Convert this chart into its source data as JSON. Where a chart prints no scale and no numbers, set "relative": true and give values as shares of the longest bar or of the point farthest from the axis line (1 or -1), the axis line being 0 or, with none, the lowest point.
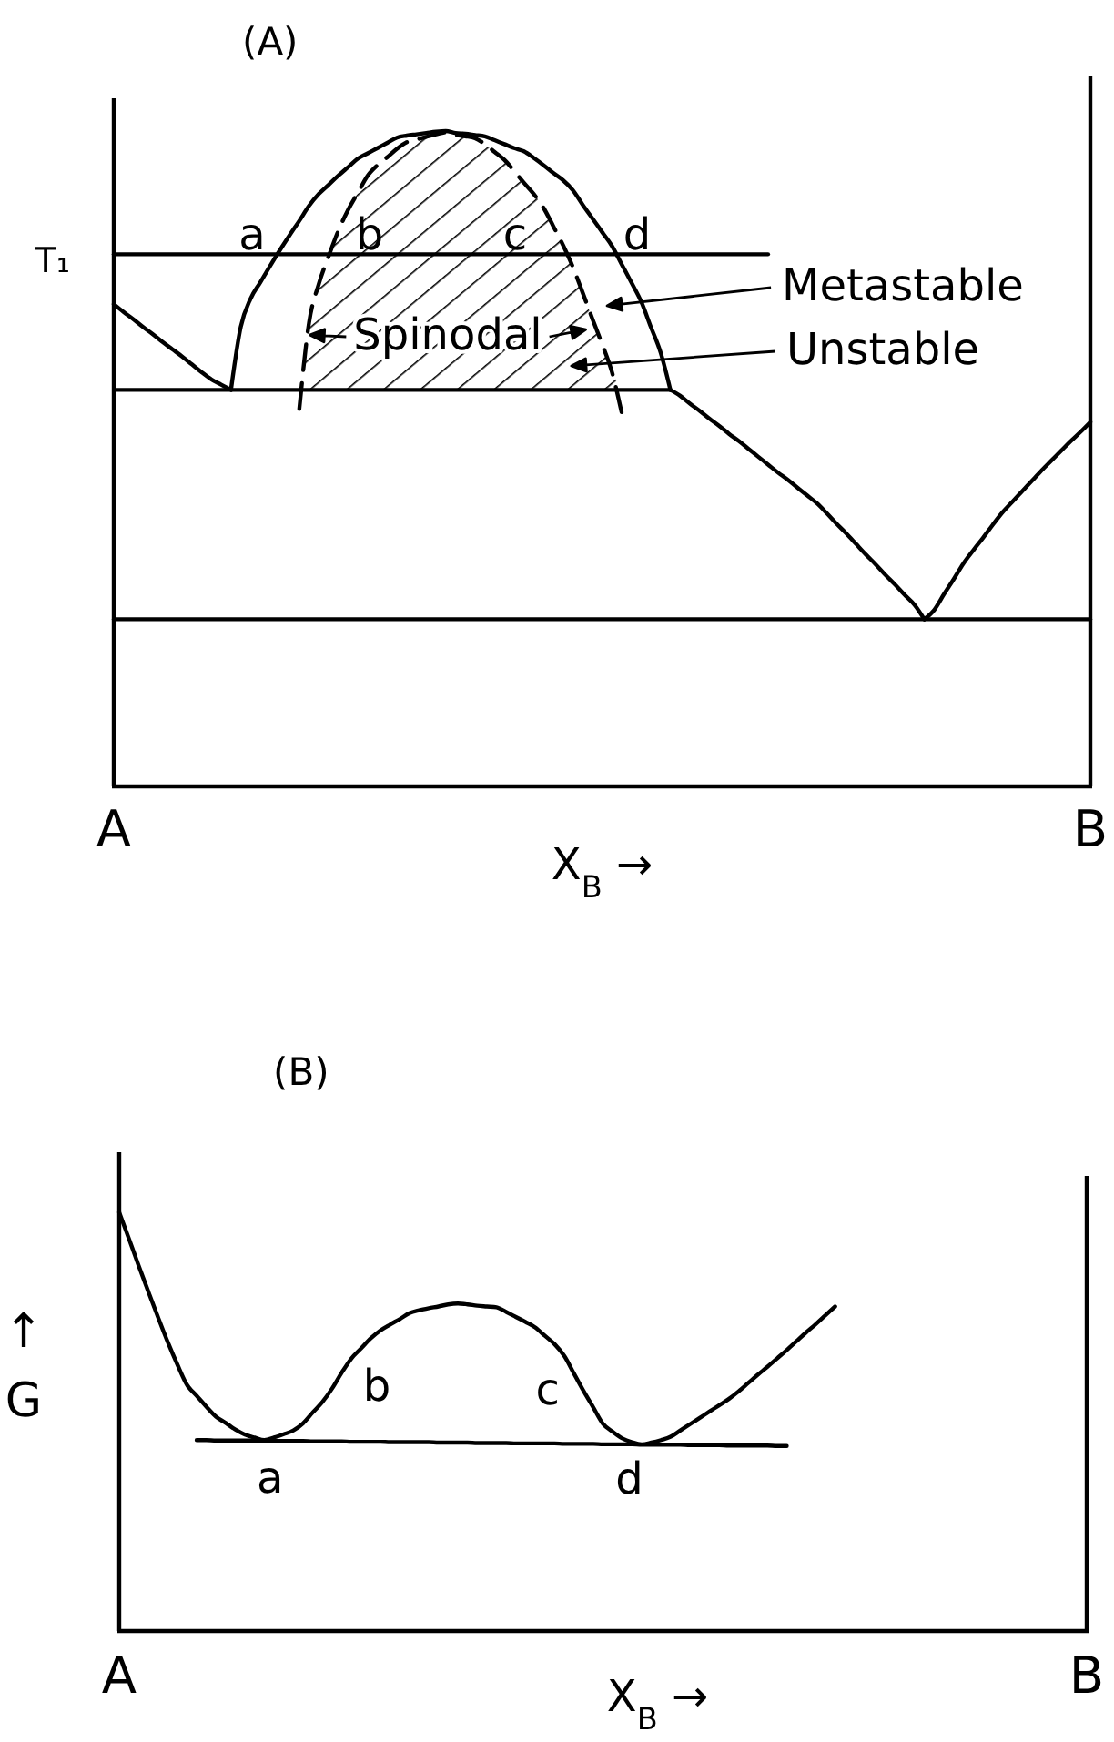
{
  "chart_data": [
    {
      "type": "line",
      "title": "(A)",
      "xlabel": "X$_{B}$ →",
      "relative": true,
      "categories": [
        "A",
        null,
        null,
        null,
        null,
        null,
        null,
        null,
        null,
        null,
        null,
        null,
        null,
        null,
        null,
        null,
        null,
        null,
        null,
        null,
        null,
        null,
        null,
        null,
        null,
        null,
        null,
        null,
        null,
        null,
        null,
        null,
        null,
        null,
        null,
        null,
        null,
        null,
        null,
        null,
        null,
        null,
        null,
        null,
        null,
        null,
        null,
        null,
        null,
        null,
        null,
        null,
        null,
        null,
        null,
        null,
        null,
        null,
        null,
        null,
        null,
        null,
        null,
        null,
        null,
        null,
        null,
        null,
        null,
        null,
        null,
        null,
        null,
        null,
        null,
        null,
        null,
        null,
        null,
        null,
        null,
        null,
        null,
        null,
        null,
        null,
        null,
        null,
        null,
        null,
        null,
        null,
        null,
        null,
        null,
        null,
        null,
        null,
        null,
        null,
        "B"
      ],
      "series": [
        {
          "color": "#000000",
          "values": [
            0.736,
            0.724,
            0.713,
            0.701,
            0.69,
            0.678,
            0.667,
            0.656,
            0.644,
            0.632,
            0.621,
            0.613,
            0.605,
            null,
            null,
            null,
            null,
            null,
            null,
            null,
            null,
            null,
            null,
            null,
            null,
            null,
            null,
            null,
            null,
            null,
            null,
            null,
            null,
            null,
            null,
            null,
            null,
            null,
            null,
            null,
            null,
            null,
            null,
            null,
            null,
            null,
            null,
            null,
            null,
            null,
            null,
            null,
            null,
            null,
            null,
            null,
            null,
            null,
            null,
            null,
            null,
            null,
            null,
            null,
            null,
            null,
            null,
            null,
            null,
            null,
            null,
            null,
            null,
            null,
            null,
            null,
            null,
            null,
            null,
            null,
            null,
            null,
            null,
            null,
            null,
            null,
            null,
            null,
            null,
            null,
            null,
            null,
            null,
            null,
            null,
            null,
            null,
            null,
            null,
            null,
            null
          ]
        },
        {
          "color": "#000000",
          "values": [
            null,
            null,
            null,
            null,
            null,
            null,
            null,
            null,
            null,
            null,
            null,
            null,
            0.605,
            0.701,
            0.744,
            0.769,
            0.794,
            0.818,
            0.841,
            0.863,
            0.886,
            0.904,
            0.918,
            0.932,
            0.945,
            0.958,
            0.966,
            0.974,
            0.982,
            0.99,
            0.993,
            0.995,
            0.997,
            0.999,
            1,
            0.997,
            0.996,
            0.994,
            0.992,
            0.986,
            0.98,
            0.974,
            0.969,
            0.959,
            0.948,
            0.936,
            0.925,
            0.91,
            0.888,
            0.867,
            0.846,
            0.825,
            0.797,
            0.769,
            0.74,
            0.701,
            0.662,
            0.605,
            null,
            null,
            null,
            null,
            null,
            null,
            null,
            null,
            null,
            null,
            null,
            null,
            null,
            null,
            null,
            null,
            null,
            null,
            null,
            null,
            null,
            null,
            null,
            null,
            null,
            null,
            null,
            null,
            null,
            null,
            null,
            null,
            null,
            null,
            null,
            null,
            null,
            null,
            null,
            null,
            null,
            null,
            null
          ]
        },
        {
          "color": "#000000",
          "values": [
            0.605,
            0.605,
            0.605,
            0.605,
            0.605,
            0.605,
            0.605,
            0.605,
            0.605,
            0.605,
            0.605,
            0.605,
            0.605,
            0.605,
            0.605,
            0.605,
            0.605,
            0.605,
            0.605,
            0.605,
            0.605,
            0.605,
            0.605,
            0.605,
            0.605,
            0.605,
            0.605,
            0.605,
            0.605,
            0.605,
            0.605,
            0.605,
            0.605,
            0.605,
            0.605,
            0.605,
            0.605,
            0.605,
            0.605,
            0.605,
            0.605,
            0.605,
            0.605,
            0.605,
            0.605,
            0.605,
            0.605,
            0.605,
            0.605,
            0.605,
            0.605,
            0.605,
            0.605,
            0.605,
            0.605,
            0.605,
            0.605,
            0.605,
            null,
            null,
            null,
            null,
            null,
            null,
            null,
            null,
            null,
            null,
            null,
            null,
            null,
            null,
            null,
            null,
            null,
            null,
            null,
            null,
            null,
            null,
            null,
            null,
            null,
            null,
            null,
            null,
            null,
            null,
            null,
            null,
            null,
            null,
            null,
            null,
            null,
            null,
            null,
            null,
            null,
            null,
            null
          ]
        },
        {
          "color": "#000000",
          "values": [
            null,
            null,
            null,
            null,
            null,
            null,
            null,
            null,
            null,
            null,
            null,
            null,
            null,
            null,
            null,
            null,
            null,
            null,
            null,
            null,
            null,
            null,
            null,
            null,
            null,
            null,
            null,
            null,
            null,
            null,
            null,
            null,
            null,
            null,
            null,
            null,
            null,
            null,
            null,
            null,
            null,
            null,
            null,
            null,
            null,
            null,
            null,
            null,
            null,
            null,
            null,
            null,
            null,
            null,
            null,
            null,
            null,
            0.605,
            0.596,
            0.584,
            0.573,
            0.561,
            0.55,
            0.538,
            0.527,
            0.515,
            0.503,
            0.491,
            0.479,
            0.468,
            0.456,
            0.444,
            0.432,
            0.417,
            0.401,
            0.386,
            0.37,
            0.354,
            0.339,
            0.323,
            0.308,
            0.292,
            0.277,
            0.255,
            null,
            null,
            null,
            null,
            null,
            null,
            null,
            null,
            null,
            null,
            null,
            null,
            null,
            null,
            null,
            null,
            null
          ]
        },
        {
          "color": "#000000",
          "values": [
            null,
            null,
            null,
            null,
            null,
            null,
            null,
            null,
            null,
            null,
            null,
            null,
            null,
            null,
            null,
            null,
            null,
            null,
            null,
            null,
            null,
            null,
            null,
            null,
            null,
            null,
            null,
            null,
            null,
            null,
            null,
            null,
            null,
            null,
            null,
            null,
            null,
            null,
            null,
            null,
            null,
            null,
            null,
            null,
            null,
            null,
            null,
            null,
            null,
            null,
            null,
            null,
            null,
            null,
            null,
            null,
            null,
            null,
            null,
            null,
            null,
            null,
            null,
            null,
            null,
            null,
            null,
            null,
            null,
            null,
            null,
            null,
            null,
            null,
            null,
            null,
            null,
            null,
            null,
            null,
            null,
            null,
            null,
            0.255,
            0.269,
            0.293,
            0.316,
            0.34,
            0.36,
            0.379,
            0.399,
            0.418,
            0.434,
            0.45,
            0.466,
            0.482,
            0.497,
            0.512,
            0.527,
            0.541,
            0.556
          ]
        },
        {
          "color": "#000000",
          "values": [
            0.255,
            0.255,
            0.255,
            0.255,
            0.255,
            0.255,
            0.255,
            0.255,
            0.255,
            0.255,
            0.255,
            0.255,
            0.255,
            0.255,
            0.255,
            0.255,
            0.255,
            0.255,
            0.255,
            0.255,
            0.255,
            0.255,
            0.255,
            0.255,
            0.255,
            0.255,
            0.255,
            0.255,
            0.255,
            0.255,
            0.255,
            0.255,
            0.255,
            0.255,
            0.255,
            0.255,
            0.255,
            0.255,
            0.255,
            0.255,
            0.255,
            0.255,
            0.255,
            0.255,
            0.255,
            0.255,
            0.255,
            0.255,
            0.255,
            0.255,
            0.255,
            0.255,
            0.255,
            0.255,
            0.255,
            0.255,
            0.255,
            0.255,
            0.255,
            0.255,
            0.255,
            0.255,
            0.255,
            0.255,
            0.255,
            0.255,
            0.255,
            0.255,
            0.255,
            0.255,
            0.255,
            0.255,
            0.255,
            0.255,
            0.255,
            0.255,
            0.255,
            0.255,
            0.255,
            0.255,
            0.255,
            0.255,
            0.255,
            0.255,
            0.255,
            0.255,
            0.255,
            0.255,
            0.255,
            0.255,
            0.255,
            0.255,
            0.255,
            0.255,
            0.255,
            0.255,
            0.255,
            0.255,
            0.255,
            0.255,
            0.255
          ]
        },
        {
          "color": "#000000",
          "line_style": "dashed",
          "values": [
            null,
            null,
            null,
            null,
            null,
            null,
            null,
            null,
            null,
            null,
            null,
            null,
            null,
            null,
            null,
            null,
            null,
            null,
            null,
            0.576,
            0.708,
            0.767,
            0.809,
            0.848,
            0.88,
            0.906,
            0.932,
            0.948,
            0.96,
            0.973,
            0.983,
            0.987,
            0.991,
            0.995,
            0.998,
            0.994,
            0.992,
            0.989,
            0.98,
            0.968,
            0.956,
            0.939,
            0.921,
            0.904,
            0.883,
            0.855,
            0.826,
            0.793,
            0.754,
            0.714,
            0.675,
            0.633,
            0.571,
            null,
            null,
            null,
            null,
            null,
            null,
            null,
            null,
            null,
            null,
            null,
            null,
            null,
            null,
            null,
            null,
            null,
            null,
            null,
            null,
            null,
            null,
            null,
            null,
            null,
            null,
            null,
            null,
            null,
            null,
            null,
            null,
            null,
            null,
            null,
            null,
            null,
            null,
            null,
            null,
            null,
            null,
            null,
            null,
            null,
            null,
            null,
            null
          ],
          "lower": [
            null,
            null,
            null,
            null,
            null,
            null,
            null,
            null,
            null,
            null,
            null,
            null,
            null,
            null,
            null,
            null,
            null,
            null,
            null,
            0.605,
            0.605,
            0.605,
            0.605,
            0.605,
            0.605,
            0.605,
            0.605,
            0.605,
            0.605,
            0.605,
            0.605,
            0.605,
            0.605,
            0.605,
            0.605,
            0.605,
            0.605,
            0.605,
            0.605,
            0.605,
            0.605,
            0.605,
            0.605,
            0.605,
            0.605,
            0.605,
            0.605,
            0.605,
            0.605,
            0.605,
            0.605,
            0.605,
            0.605,
            null,
            null,
            null,
            null,
            null,
            null,
            null,
            null,
            null,
            null,
            null,
            null,
            null,
            null,
            null,
            null,
            null,
            null,
            null,
            null,
            null,
            null,
            null,
            null,
            null,
            null,
            null,
            null,
            null,
            null,
            null,
            null,
            null,
            null,
            null,
            null,
            null,
            null,
            null,
            null,
            null,
            null,
            null,
            null,
            null,
            null,
            null,
            null
          ],
          "upper": [
            null,
            null,
            null,
            null,
            null,
            null,
            null,
            null,
            null,
            null,
            null,
            null,
            null,
            null,
            null,
            null,
            null,
            null,
            null,
            0.605,
            0.708,
            0.767,
            0.809,
            0.848,
            0.88,
            0.906,
            0.932,
            0.948,
            0.96,
            0.973,
            0.983,
            0.987,
            0.991,
            0.995,
            0.998,
            0.994,
            0.992,
            0.989,
            0.98,
            0.968,
            0.956,
            0.939,
            0.921,
            0.904,
            0.883,
            0.855,
            0.826,
            0.793,
            0.754,
            0.714,
            0.675,
            0.633,
            0.605,
            null,
            null,
            null,
            null,
            null,
            null,
            null,
            null,
            null,
            null,
            null,
            null,
            null,
            null,
            null,
            null,
            null,
            null,
            null,
            null,
            null,
            null,
            null,
            null,
            null,
            null,
            null,
            null,
            null,
            null,
            null,
            null,
            null,
            null,
            null,
            null,
            null,
            null,
            null,
            null,
            null,
            null,
            null,
            null,
            null,
            null,
            null,
            null
          ]
        },
        {
          "name": "T₁",
          "color": "#000000",
          "values": [
            0.812,
            0.812,
            0.812,
            0.812,
            0.812,
            0.812,
            0.812,
            0.812,
            0.812,
            0.812,
            0.812,
            0.812,
            0.812,
            0.812,
            0.812,
            0.812,
            0.812,
            0.812,
            0.812,
            0.812,
            0.812,
            0.812,
            0.812,
            0.812,
            0.812,
            0.812,
            0.812,
            0.812,
            0.812,
            0.812,
            0.812,
            0.812,
            0.812,
            0.812,
            0.812,
            0.812,
            0.812,
            0.812,
            0.812,
            0.812,
            0.812,
            0.812,
            0.812,
            0.812,
            0.812,
            0.812,
            0.812,
            0.812,
            0.812,
            0.812,
            0.812,
            0.812,
            0.812,
            0.812,
            0.812,
            0.812,
            0.812,
            0.812,
            0.812,
            0.812,
            0.812,
            0.812,
            0.812,
            0.812,
            0.812,
            0.812,
            0.812,
            0.812,
            null,
            null,
            null,
            null,
            null,
            null,
            null,
            null,
            null,
            null,
            null,
            null,
            null,
            null,
            null,
            null,
            null,
            null,
            null,
            null,
            null,
            null,
            null,
            null,
            null,
            null,
            null,
            null,
            null,
            null,
            null,
            null,
            null
          ]
        }
      ],
      "annotations": [
        "a",
        "b",
        "c",
        "d",
        "Spinodal",
        "Metastable",
        "Unstable"
      ]
    },
    {
      "type": "line",
      "title": "(B)",
      "xlabel": "X$_{B}$ →",
      "ylabel": "↑ G",
      "relative": true,
      "categories": [
        "A",
        null,
        null,
        null,
        null,
        null,
        null,
        null,
        null,
        null,
        null,
        null,
        null,
        null,
        null,
        null,
        null,
        null,
        null,
        null,
        null,
        null,
        null,
        null,
        null,
        null,
        null,
        null,
        null,
        null,
        null,
        null,
        null,
        null,
        null,
        null,
        null,
        null,
        null,
        null,
        null,
        null,
        null,
        null,
        null,
        null,
        null,
        null,
        null,
        null,
        null,
        null,
        null,
        null,
        null,
        null,
        null,
        null,
        null,
        null,
        null,
        null,
        null,
        null,
        null,
        null,
        null,
        null,
        null,
        null,
        null,
        null,
        null,
        null,
        null,
        null,
        null,
        null,
        null,
        null,
        null,
        null,
        null,
        null,
        null,
        null,
        null,
        null,
        null,
        null,
        null,
        null,
        null,
        null,
        null,
        null,
        null,
        null,
        null,
        null,
        "B"
      ],
      "series": [
        {
          "color": "#000000",
          "values": [
            1,
            0.937,
            0.873,
            0.811,
            0.75,
            0.691,
            0.637,
            0.588,
            0.562,
            0.536,
            0.512,
            0.497,
            0.481,
            0.469,
            0.462,
            0.456,
            0.462,
            0.47,
            0.479,
            0.496,
            0.522,
            0.547,
            0.579,
            0.617,
            0.651,
            0.675,
            0.699,
            0.718,
            0.732,
            0.745,
            0.759,
            0.766,
            0.771,
            0.775,
            0.78,
            0.782,
            0.78,
            0.777,
            0.775,
            0.773,
            0.762,
            0.75,
            0.738,
            0.725,
            0.705,
            0.685,
            0.657,
            0.615,
            0.573,
            0.534,
            0.495,
            0.476,
            0.46,
            0.451,
            0.446,
            0.45,
            0.456,
            0.464,
            0.479,
            0.494,
            0.509,
            0.524,
            0.539,
            0.554,
            0.572,
            0.592,
            0.612,
            0.631,
            0.651,
            0.671,
            0.692,
            0.713,
            0.733,
            0.754,
            0.775,
            null,
            null,
            null,
            null,
            null,
            null,
            null,
            null,
            null,
            null,
            null,
            null,
            null,
            null,
            null,
            null,
            null,
            null,
            null,
            null,
            null,
            null,
            null,
            null,
            null,
            null
          ]
        },
        {
          "color": "#000000",
          "values": [
            null,
            null,
            null,
            null,
            null,
            null,
            null,
            null,
            0.456,
            0.456,
            0.455,
            0.455,
            0.455,
            0.455,
            0.455,
            0.454,
            0.454,
            0.454,
            0.454,
            0.454,
            0.453,
            0.453,
            0.453,
            0.453,
            0.452,
            0.452,
            0.452,
            0.452,
            0.451,
            0.451,
            0.451,
            0.451,
            0.451,
            0.45,
            0.45,
            0.45,
            0.45,
            0.449,
            0.449,
            0.449,
            0.449,
            0.448,
            0.448,
            0.448,
            0.448,
            0.448,
            0.447,
            0.447,
            0.447,
            0.447,
            0.446,
            0.446,
            0.446,
            0.446,
            0.445,
            0.445,
            0.445,
            0.445,
            0.445,
            0.444,
            0.444,
            0.444,
            0.444,
            0.443,
            0.443,
            0.443,
            0.443,
            0.443,
            0.442,
            0.442,
            null,
            null,
            null,
            null,
            null,
            null,
            null,
            null,
            null,
            null,
            null,
            null,
            null,
            null,
            null,
            null,
            null,
            null,
            null,
            null,
            null,
            null,
            null,
            null,
            null,
            null,
            null,
            null,
            null,
            null,
            null
          ]
        }
      ],
      "annotations": [
        "a",
        "b",
        "c",
        "d"
      ]
    }
  ]
}
